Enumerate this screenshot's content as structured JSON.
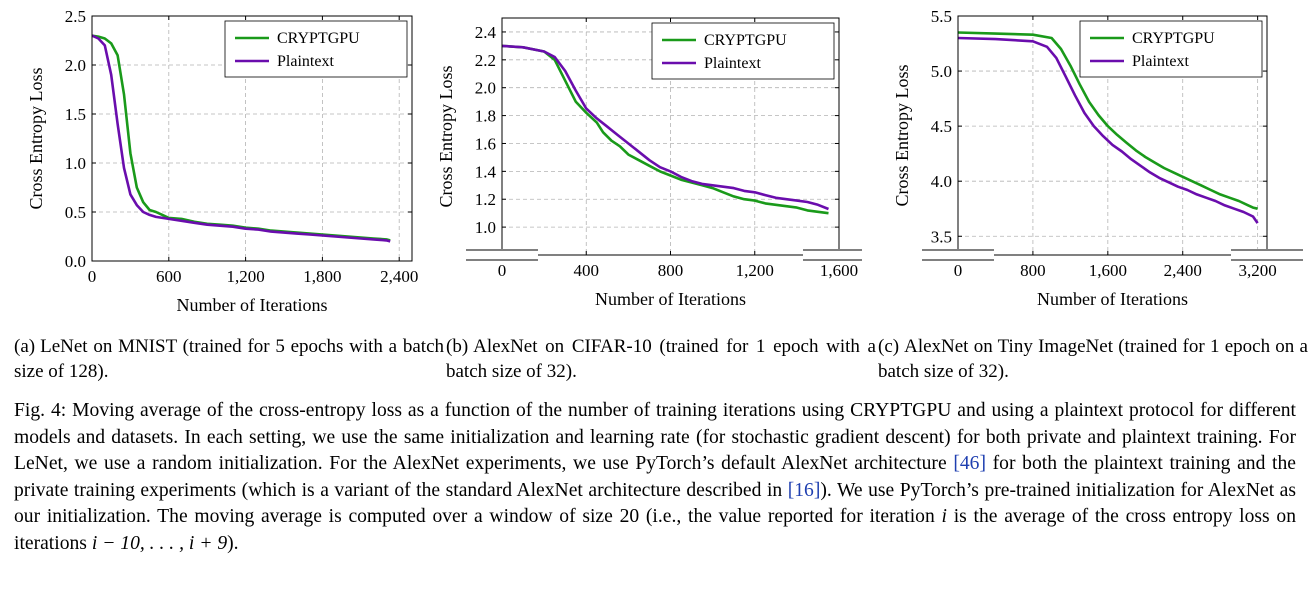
{
  "colors": {
    "cryptgpu": "#1a9a1a",
    "plaintext": "#6a0dad",
    "cite": "#1f3fb0",
    "grid": "#b4b4b4"
  },
  "chart_data": [
    {
      "type": "line",
      "xlabel": "Number of Iterations",
      "ylabel": "Cross Entropy Loss",
      "xlim": [
        0,
        2500
      ],
      "ylim": [
        0,
        2.5
      ],
      "xticks": [
        0,
        600,
        1200,
        1800,
        2400
      ],
      "xtick_labels": [
        "0",
        "600",
        "1,200",
        "1,800",
        "2,400"
      ],
      "yticks": [
        0,
        0.5,
        1.0,
        1.5,
        2.0,
        2.5
      ],
      "ytick_labels": [
        "0.0",
        "0.5",
        "1.0",
        "1.5",
        "2.0",
        "2.5"
      ],
      "axis_break": false,
      "grid": true,
      "legend_position": "top-right",
      "series": [
        {
          "name": "CRYPTGPU",
          "key": "cryptgpu",
          "points": [
            [
              0,
              2.3
            ],
            [
              50,
              2.29
            ],
            [
              100,
              2.27
            ],
            [
              150,
              2.22
            ],
            [
              200,
              2.1
            ],
            [
              250,
              1.7
            ],
            [
              300,
              1.1
            ],
            [
              350,
              0.75
            ],
            [
              400,
              0.6
            ],
            [
              450,
              0.52
            ],
            [
              500,
              0.5
            ],
            [
              550,
              0.47
            ],
            [
              600,
              0.44
            ],
            [
              700,
              0.43
            ],
            [
              800,
              0.4
            ],
            [
              900,
              0.38
            ],
            [
              1000,
              0.37
            ],
            [
              1100,
              0.36
            ],
            [
              1200,
              0.34
            ],
            [
              1300,
              0.33
            ],
            [
              1400,
              0.31
            ],
            [
              1500,
              0.3
            ],
            [
              1600,
              0.29
            ],
            [
              1700,
              0.28
            ],
            [
              1800,
              0.27
            ],
            [
              1900,
              0.26
            ],
            [
              2000,
              0.25
            ],
            [
              2100,
              0.24
            ],
            [
              2200,
              0.23
            ],
            [
              2300,
              0.22
            ],
            [
              2330,
              0.21
            ]
          ]
        },
        {
          "name": "Plaintext",
          "key": "plaintext",
          "points": [
            [
              0,
              2.3
            ],
            [
              50,
              2.27
            ],
            [
              100,
              2.2
            ],
            [
              150,
              1.9
            ],
            [
              200,
              1.4
            ],
            [
              250,
              0.95
            ],
            [
              300,
              0.68
            ],
            [
              350,
              0.57
            ],
            [
              400,
              0.5
            ],
            [
              450,
              0.47
            ],
            [
              500,
              0.45
            ],
            [
              550,
              0.44
            ],
            [
              600,
              0.43
            ],
            [
              700,
              0.41
            ],
            [
              800,
              0.39
            ],
            [
              900,
              0.37
            ],
            [
              1000,
              0.36
            ],
            [
              1100,
              0.35
            ],
            [
              1200,
              0.33
            ],
            [
              1300,
              0.32
            ],
            [
              1400,
              0.3
            ],
            [
              1500,
              0.29
            ],
            [
              1600,
              0.28
            ],
            [
              1700,
              0.27
            ],
            [
              1800,
              0.26
            ],
            [
              1900,
              0.25
            ],
            [
              2000,
              0.24
            ],
            [
              2100,
              0.23
            ],
            [
              2200,
              0.22
            ],
            [
              2300,
              0.21
            ],
            [
              2330,
              0.2
            ]
          ]
        }
      ]
    },
    {
      "type": "line",
      "xlabel": "Number of Iterations",
      "ylabel": "Cross Entropy Loss",
      "xlim": [
        0,
        1600
      ],
      "ylim": [
        0.8,
        2.5
      ],
      "xticks": [
        0,
        400,
        800,
        1200,
        1600
      ],
      "xtick_labels": [
        "0",
        "400",
        "800",
        "1,200",
        "1,600"
      ],
      "yticks": [
        1.0,
        1.2,
        1.4,
        1.6,
        1.8,
        2.0,
        2.2,
        2.4
      ],
      "ytick_labels": [
        "1.0",
        "1.2",
        "1.4",
        "1.6",
        "1.8",
        "2.0",
        "2.2",
        "2.4"
      ],
      "axis_break": true,
      "grid": true,
      "legend_position": "top-right",
      "series": [
        {
          "name": "CRYPTGPU",
          "key": "cryptgpu",
          "points": [
            [
              0,
              2.3
            ],
            [
              100,
              2.29
            ],
            [
              200,
              2.26
            ],
            [
              250,
              2.2
            ],
            [
              300,
              2.05
            ],
            [
              350,
              1.9
            ],
            [
              400,
              1.82
            ],
            [
              450,
              1.75
            ],
            [
              480,
              1.68
            ],
            [
              520,
              1.62
            ],
            [
              560,
              1.58
            ],
            [
              600,
              1.52
            ],
            [
              650,
              1.48
            ],
            [
              700,
              1.44
            ],
            [
              750,
              1.4
            ],
            [
              800,
              1.37
            ],
            [
              850,
              1.34
            ],
            [
              900,
              1.32
            ],
            [
              950,
              1.3
            ],
            [
              1000,
              1.28
            ],
            [
              1050,
              1.25
            ],
            [
              1100,
              1.22
            ],
            [
              1150,
              1.2
            ],
            [
              1200,
              1.19
            ],
            [
              1250,
              1.17
            ],
            [
              1300,
              1.16
            ],
            [
              1350,
              1.15
            ],
            [
              1400,
              1.14
            ],
            [
              1450,
              1.12
            ],
            [
              1500,
              1.11
            ],
            [
              1550,
              1.1
            ]
          ]
        },
        {
          "name": "Plaintext",
          "key": "plaintext",
          "points": [
            [
              0,
              2.3
            ],
            [
              100,
              2.29
            ],
            [
              200,
              2.26
            ],
            [
              250,
              2.22
            ],
            [
              300,
              2.12
            ],
            [
              350,
              1.98
            ],
            [
              400,
              1.85
            ],
            [
              450,
              1.78
            ],
            [
              500,
              1.72
            ],
            [
              550,
              1.66
            ],
            [
              600,
              1.6
            ],
            [
              650,
              1.54
            ],
            [
              700,
              1.48
            ],
            [
              750,
              1.43
            ],
            [
              800,
              1.4
            ],
            [
              850,
              1.36
            ],
            [
              900,
              1.33
            ],
            [
              950,
              1.31
            ],
            [
              1000,
              1.3
            ],
            [
              1050,
              1.29
            ],
            [
              1100,
              1.28
            ],
            [
              1150,
              1.26
            ],
            [
              1200,
              1.25
            ],
            [
              1250,
              1.23
            ],
            [
              1300,
              1.21
            ],
            [
              1350,
              1.2
            ],
            [
              1400,
              1.19
            ],
            [
              1450,
              1.18
            ],
            [
              1500,
              1.16
            ],
            [
              1550,
              1.13
            ]
          ]
        }
      ]
    },
    {
      "type": "line",
      "xlabel": "Number of Iterations",
      "ylabel": "Cross Entropy Loss",
      "xlim": [
        0,
        3300
      ],
      "ylim": [
        3.33,
        5.5
      ],
      "xticks": [
        0,
        800,
        1600,
        2400,
        3200
      ],
      "xtick_labels": [
        "0",
        "800",
        "1,600",
        "2,400",
        "3,200"
      ],
      "yticks": [
        3.5,
        4.0,
        4.5,
        5.0,
        5.5
      ],
      "ytick_labels": [
        "3.5",
        "4.0",
        "4.5",
        "5.0",
        "5.5"
      ],
      "axis_break": true,
      "grid": true,
      "legend_position": "top-right",
      "series": [
        {
          "name": "CRYPTGPU",
          "key": "cryptgpu",
          "points": [
            [
              0,
              5.35
            ],
            [
              400,
              5.34
            ],
            [
              800,
              5.33
            ],
            [
              1000,
              5.3
            ],
            [
              1100,
              5.2
            ],
            [
              1200,
              5.05
            ],
            [
              1300,
              4.88
            ],
            [
              1400,
              4.72
            ],
            [
              1500,
              4.6
            ],
            [
              1600,
              4.5
            ],
            [
              1700,
              4.42
            ],
            [
              1800,
              4.35
            ],
            [
              1900,
              4.28
            ],
            [
              2000,
              4.22
            ],
            [
              2100,
              4.17
            ],
            [
              2200,
              4.12
            ],
            [
              2300,
              4.08
            ],
            [
              2400,
              4.04
            ],
            [
              2500,
              4.0
            ],
            [
              2600,
              3.96
            ],
            [
              2700,
              3.92
            ],
            [
              2800,
              3.88
            ],
            [
              2900,
              3.85
            ],
            [
              3000,
              3.82
            ],
            [
              3100,
              3.78
            ],
            [
              3150,
              3.76
            ],
            [
              3200,
              3.75
            ]
          ]
        },
        {
          "name": "Plaintext",
          "key": "plaintext",
          "points": [
            [
              0,
              5.3
            ],
            [
              400,
              5.29
            ],
            [
              800,
              5.27
            ],
            [
              950,
              5.22
            ],
            [
              1050,
              5.12
            ],
            [
              1150,
              4.95
            ],
            [
              1250,
              4.78
            ],
            [
              1350,
              4.62
            ],
            [
              1450,
              4.5
            ],
            [
              1550,
              4.41
            ],
            [
              1650,
              4.33
            ],
            [
              1750,
              4.27
            ],
            [
              1850,
              4.2
            ],
            [
              1950,
              4.14
            ],
            [
              2050,
              4.08
            ],
            [
              2150,
              4.03
            ],
            [
              2250,
              3.99
            ],
            [
              2350,
              3.95
            ],
            [
              2450,
              3.92
            ],
            [
              2550,
              3.88
            ],
            [
              2650,
              3.85
            ],
            [
              2750,
              3.82
            ],
            [
              2850,
              3.78
            ],
            [
              2950,
              3.75
            ],
            [
              3050,
              3.72
            ],
            [
              3150,
              3.68
            ],
            [
              3200,
              3.62
            ]
          ]
        }
      ]
    }
  ],
  "legend": {
    "cryptgpu": "CRYPTGPU",
    "plaintext": "Plaintext"
  },
  "subcaptions": [
    {
      "label": "(a)",
      "text": "LeNet on MNIST (trained for 5 epochs with a batch size of 128)."
    },
    {
      "label": "(b)",
      "text": "AlexNet on CIFAR-10 (trained for 1 epoch with a batch size of 32)."
    },
    {
      "label": "(c)",
      "text": "AlexNet on Tiny ImageNet (trained for 1 epoch on a batch size of 32)."
    }
  ],
  "figure_caption": {
    "prefix": "Fig. 4: Moving average of the cross-entropy loss as a function of the number of training iterations using",
    "name": "CRYPTGPU",
    "part2": "and using a plaintext protocol for different models and datasets. In each setting, we use the same initialization and learning rate (for stochastic gradient descent) for both private and plaintext training. For LeNet, we use a random initialization. For the AlexNet experiments, we use PyTorch’s default AlexNet architecture",
    "cite1": "[46]",
    "part3": "for both the plaintext training and the private training experiments (which is a variant of the standard AlexNet architecture described in",
    "cite2": "[16]",
    "part4": "). We use PyTorch’s pre-trained initialization for AlexNet as our initialization. The moving average is computed over a window of size 20 (i.e., the value reported for iteration",
    "math_i": "i",
    "part5": "is the average of the cross entropy loss on iterations",
    "math_range": "i − 10, . . . , i + 9",
    "part6": ")."
  }
}
